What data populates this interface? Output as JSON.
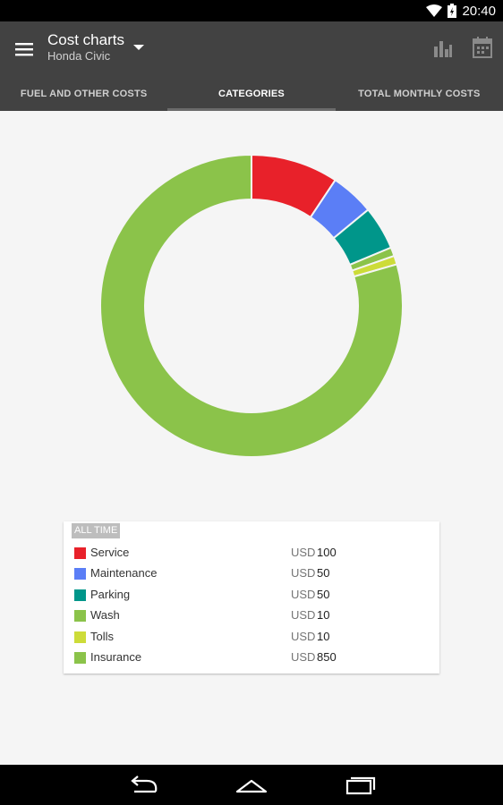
{
  "status_bar": {
    "time": "20:40"
  },
  "app_bar": {
    "title": "Cost charts",
    "subtitle": "Honda Civic"
  },
  "tabs": [
    {
      "label": "FUEL AND OTHER COSTS",
      "active": false
    },
    {
      "label": "CATEGORIES",
      "active": true
    },
    {
      "label": "TOTAL MONTHLY COSTS",
      "active": false
    }
  ],
  "legend": {
    "header": "ALL TIME",
    "currency": "USD"
  },
  "chart_data": {
    "type": "pie",
    "categories": [
      "Service",
      "Maintenance",
      "Parking",
      "Wash",
      "Tolls",
      "Insurance"
    ],
    "values": [
      100,
      50,
      50,
      10,
      10,
      850
    ],
    "colors": [
      "#e8212a",
      "#5b7ef6",
      "#00968a",
      "#8bc34a",
      "#cddc39",
      "#8bc34a"
    ]
  }
}
